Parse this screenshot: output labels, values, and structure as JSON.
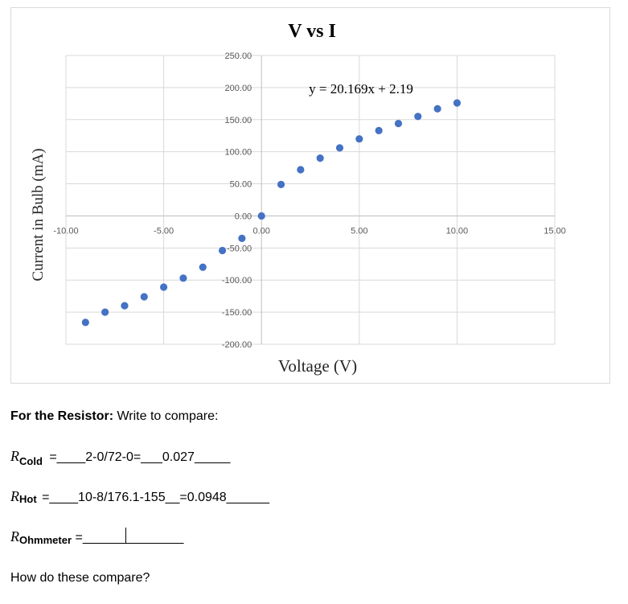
{
  "chart_data": {
    "type": "scatter",
    "title": "V vs I",
    "xlabel": "Voltage (V)",
    "ylabel": "Current in Bulb (mA)",
    "xlim": [
      -10,
      15
    ],
    "ylim": [
      -200,
      250
    ],
    "x_ticks": [
      "-10.00",
      "-5.00",
      "0.00",
      "5.00",
      "10.00",
      "15.00"
    ],
    "y_ticks": [
      "250.00",
      "200.00",
      "150.00",
      "100.00",
      "50.00",
      "0.00",
      "-50.00",
      "-100.00",
      "-150.00",
      "-200.00"
    ],
    "grid": true,
    "marker_color": "#4472C4",
    "trendline_label": "y = 20.169x + 2.19",
    "series": [
      {
        "x": [
          -9,
          -8,
          -7,
          -6,
          -5,
          -4,
          -3,
          -2,
          -1,
          0,
          1,
          2,
          3,
          4,
          5,
          6,
          7,
          8,
          9,
          10
        ],
        "values": [
          -166,
          -150,
          -140,
          -126,
          -111,
          -97,
          -80,
          -54,
          -35,
          0,
          49,
          72,
          90,
          106,
          120,
          133,
          144,
          155,
          167,
          176
        ]
      }
    ]
  },
  "document": {
    "heading_bold": "For the Resistor:",
    "heading_rest": " Write to compare:",
    "r_symbol": "R",
    "cold_sub": "Cold",
    "cold_value": " =____2-0/72-0=___0.027_____",
    "hot_sub": "Hot",
    "hot_value": "  =____10-8/176.1-155__=0.0948______",
    "ohm_sub": "Ohmmeter",
    "ohm_value_before": " =______",
    "ohm_value_after": "________",
    "question": "How do these compare?"
  }
}
